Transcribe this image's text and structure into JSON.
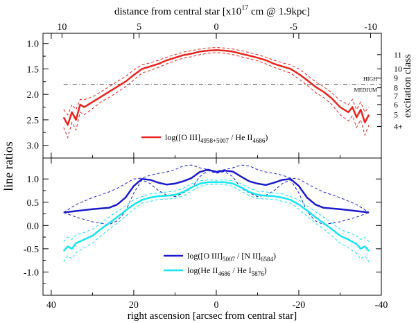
{
  "chart_data": {
    "type": "line",
    "top_axis": {
      "label": "distance from central star [x10",
      "label_sup": "17",
      "label_tail": " cm @ 1.9kpc]",
      "ticks": [
        "10",
        "5",
        "0",
        "-5",
        "-10"
      ],
      "tick_values": [
        10,
        5,
        0,
        -5,
        -10
      ]
    },
    "x_axis": {
      "label": "right ascension [arcsec from central star]",
      "ticks": [
        "40",
        "20",
        "0",
        "-20",
        "-40"
      ],
      "tick_values": [
        40,
        20,
        0,
        -20,
        -40
      ],
      "range": [
        42,
        -40
      ]
    },
    "y_label": "line ratios",
    "right_axis_label": "excitation class",
    "panels": [
      {
        "name": "top",
        "ylim": [
          3.25,
          0.8
        ],
        "inverted": true,
        "y_ticks": [
          "1.0",
          "1.5",
          "2.0",
          "2.5",
          "3.0"
        ],
        "y_tick_values": [
          1.0,
          1.5,
          2.0,
          2.5,
          3.0
        ],
        "excitation_classes": [
          {
            "label": "11",
            "value": 1.22
          },
          {
            "label": "10",
            "value": 1.5
          },
          {
            "label": "9",
            "value": 1.68
          },
          {
            "label": "8",
            "value": 1.87
          },
          {
            "label": "7",
            "value": 2.03
          },
          {
            "label": "6",
            "value": 2.2
          },
          {
            "label": "5",
            "value": 2.4
          },
          {
            "label": "4+",
            "value": 2.63
          }
        ],
        "threshold": {
          "value": 1.8,
          "label_high": "HIGH",
          "label_medium": "MEDIUM"
        },
        "series": [
          {
            "name": "log([O III]4958+5007 / He II4686)",
            "legend_main": "log([O III]",
            "legend_sub1": "4958+5007",
            "legend_mid": " / He II",
            "legend_sub2": "4686",
            "legend_end": ")",
            "color": "#e8231e",
            "x": [
              37,
              36,
              35,
              34,
              33,
              32,
              30,
              28,
              26,
              24,
              22,
              20,
              18,
              16,
              14,
              12,
              10,
              8,
              6,
              4,
              2,
              0,
              -2,
              -4,
              -6,
              -8,
              -10,
              -12,
              -14,
              -16,
              -18,
              -20,
              -22,
              -24,
              -26,
              -28,
              -30,
              -32,
              -33,
              -34,
              -35,
              -36,
              -37
            ],
            "y": [
              2.45,
              2.6,
              2.35,
              2.5,
              2.2,
              2.25,
              2.15,
              2.05,
              1.95,
              1.85,
              1.75,
              1.62,
              1.5,
              1.45,
              1.4,
              1.33,
              1.28,
              1.23,
              1.2,
              1.16,
              1.14,
              1.13,
              1.14,
              1.16,
              1.2,
              1.24,
              1.28,
              1.33,
              1.4,
              1.45,
              1.5,
              1.6,
              1.72,
              1.85,
              1.95,
              2.08,
              2.25,
              2.35,
              2.25,
              2.45,
              2.3,
              2.55,
              2.4
            ],
            "y_upper": [
              2.3,
              2.4,
              2.2,
              2.3,
              2.1,
              2.1,
              2.05,
              1.95,
              1.85,
              1.75,
              1.65,
              1.52,
              1.42,
              1.38,
              1.33,
              1.27,
              1.22,
              1.17,
              1.14,
              1.11,
              1.09,
              1.08,
              1.09,
              1.11,
              1.14,
              1.18,
              1.22,
              1.27,
              1.33,
              1.38,
              1.42,
              1.5,
              1.62,
              1.75,
              1.85,
              1.97,
              2.12,
              2.2,
              2.1,
              2.3,
              2.15,
              2.35,
              2.25
            ],
            "y_lower": [
              2.65,
              2.85,
              2.55,
              2.7,
              2.35,
              2.4,
              2.28,
              2.15,
              2.06,
              1.96,
              1.85,
              1.72,
              1.58,
              1.53,
              1.47,
              1.4,
              1.34,
              1.29,
              1.26,
              1.22,
              1.19,
              1.18,
              1.19,
              1.22,
              1.26,
              1.3,
              1.34,
              1.4,
              1.47,
              1.53,
              1.58,
              1.7,
              1.82,
              1.96,
              2.06,
              2.2,
              2.4,
              2.52,
              2.42,
              2.65,
              2.5,
              2.8,
              2.6
            ]
          }
        ]
      },
      {
        "name": "bottom",
        "ylim": [
          -1.5,
          1.45
        ],
        "inverted": false,
        "y_ticks": [
          "1.0",
          "0.5",
          "0.0",
          "-0.5",
          "-1.0"
        ],
        "y_tick_values": [
          1.0,
          0.5,
          0.0,
          -0.5,
          -1.0
        ],
        "series": [
          {
            "name": "log([O III]5007 / [N II]6584)",
            "legend_main": "log([O III]",
            "legend_sub1": "5007",
            "legend_mid": " / [N II]",
            "legend_sub2": "6584",
            "legend_end": ")",
            "color": "#1a1acc",
            "x": [
              37,
              34,
              30,
              26,
              24,
              22,
              20,
              18,
              16,
              14,
              12,
              10,
              8,
              6,
              4,
              2,
              0,
              -2,
              -4,
              -6,
              -8,
              -10,
              -12,
              -14,
              -16,
              -18,
              -20,
              -22,
              -24,
              -26,
              -30,
              -34,
              -37
            ],
            "y": [
              0.28,
              0.31,
              0.35,
              0.38,
              0.45,
              0.6,
              0.85,
              1.0,
              0.98,
              0.92,
              0.88,
              0.9,
              0.95,
              1.02,
              1.15,
              1.2,
              1.15,
              1.18,
              1.16,
              1.05,
              0.95,
              0.9,
              0.87,
              0.92,
              0.98,
              1.0,
              0.85,
              0.6,
              0.45,
              0.38,
              0.35,
              0.31,
              0.28
            ],
            "y_upper": [
              0.28,
              0.45,
              0.6,
              0.72,
              0.8,
              0.9,
              1.0,
              1.02,
              1.08,
              1.12,
              1.15,
              1.2,
              1.28,
              1.3,
              1.24,
              1.2,
              1.17,
              1.2,
              1.24,
              1.3,
              1.28,
              1.2,
              1.15,
              1.12,
              1.08,
              1.02,
              1.0,
              0.9,
              0.8,
              0.72,
              0.6,
              0.45,
              0.28
            ],
            "y_lower": [
              0.28,
              0.18,
              0.08,
              0.02,
              0.1,
              0.3,
              0.7,
              0.98,
              0.9,
              0.75,
              0.65,
              0.62,
              0.7,
              0.8,
              1.05,
              1.18,
              1.12,
              1.16,
              1.05,
              0.8,
              0.7,
              0.62,
              0.65,
              0.75,
              0.9,
              0.98,
              0.7,
              0.3,
              0.1,
              0.02,
              0.08,
              0.18,
              0.28
            ]
          },
          {
            "name": "log(He II4686 / He I5876)",
            "legend_main": "log(He II",
            "legend_sub1": "4686",
            "legend_mid": " / He I",
            "legend_sub2": "5876",
            "legend_end": ")",
            "color": "#16e6f0",
            "x": [
              37,
              36,
              35,
              34,
              32,
              30,
              28,
              26,
              24,
              22,
              20,
              18,
              16,
              14,
              12,
              10,
              8,
              6,
              4,
              2,
              0,
              -2,
              -4,
              -6,
              -8,
              -10,
              -12,
              -14,
              -16,
              -18,
              -20,
              -22,
              -24,
              -26,
              -28,
              -30,
              -32,
              -34,
              -35,
              -36,
              -37
            ],
            "y": [
              -0.55,
              -0.45,
              -0.5,
              -0.38,
              -0.3,
              -0.22,
              -0.08,
              0.05,
              0.18,
              0.32,
              0.45,
              0.55,
              0.6,
              0.63,
              0.64,
              0.66,
              0.72,
              0.82,
              0.9,
              0.93,
              0.93,
              0.93,
              0.9,
              0.82,
              0.72,
              0.66,
              0.64,
              0.63,
              0.6,
              0.55,
              0.45,
              0.32,
              0.18,
              0.05,
              -0.08,
              -0.22,
              -0.3,
              -0.4,
              -0.5,
              -0.45,
              -0.55
            ],
            "y_upper": [
              -0.35,
              -0.25,
              -0.3,
              -0.2,
              -0.15,
              -0.08,
              0.05,
              0.18,
              0.3,
              0.42,
              0.55,
              0.62,
              0.68,
              0.7,
              0.72,
              0.74,
              0.8,
              0.9,
              0.96,
              0.98,
              0.97,
              0.98,
              0.96,
              0.9,
              0.8,
              0.74,
              0.72,
              0.7,
              0.68,
              0.62,
              0.55,
              0.42,
              0.3,
              0.18,
              0.05,
              -0.08,
              -0.15,
              -0.22,
              -0.3,
              -0.25,
              -0.35
            ],
            "y_lower": [
              -0.78,
              -0.65,
              -0.72,
              -0.58,
              -0.48,
              -0.38,
              -0.22,
              -0.08,
              0.05,
              0.2,
              0.35,
              0.48,
              0.52,
              0.56,
              0.57,
              0.58,
              0.64,
              0.74,
              0.84,
              0.88,
              0.89,
              0.88,
              0.84,
              0.74,
              0.64,
              0.58,
              0.57,
              0.56,
              0.52,
              0.48,
              0.35,
              0.2,
              0.05,
              -0.08,
              -0.22,
              -0.38,
              -0.48,
              -0.6,
              -0.72,
              -0.65,
              -0.78
            ]
          }
        ]
      }
    ]
  }
}
